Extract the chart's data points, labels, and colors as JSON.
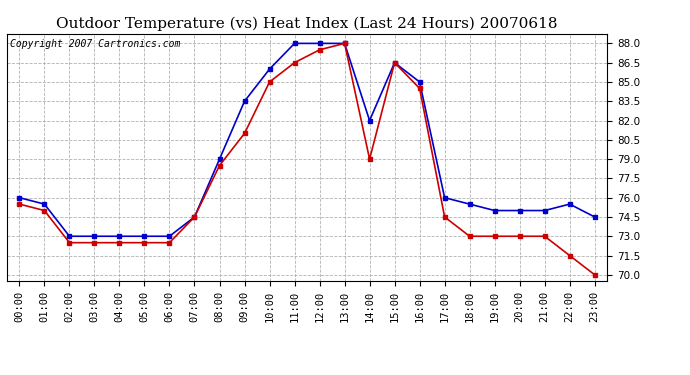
{
  "title": "Outdoor Temperature (vs) Heat Index (Last 24 Hours) 20070618",
  "copyright": "Copyright 2007 Cartronics.com",
  "hours": [
    "00:00",
    "01:00",
    "02:00",
    "03:00",
    "04:00",
    "05:00",
    "06:00",
    "07:00",
    "08:00",
    "09:00",
    "10:00",
    "11:00",
    "12:00",
    "13:00",
    "14:00",
    "15:00",
    "16:00",
    "17:00",
    "18:00",
    "19:00",
    "20:00",
    "21:00",
    "22:00",
    "23:00"
  ],
  "blue_data": [
    76.0,
    75.5,
    73.0,
    73.0,
    73.0,
    73.0,
    73.0,
    74.5,
    79.0,
    83.5,
    86.0,
    88.0,
    88.0,
    88.0,
    82.0,
    86.5,
    85.0,
    76.0,
    75.5,
    75.0,
    75.0,
    75.0,
    75.5,
    74.5
  ],
  "red_data": [
    75.5,
    75.0,
    72.5,
    72.5,
    72.5,
    72.5,
    72.5,
    74.5,
    78.5,
    81.0,
    85.0,
    86.5,
    87.5,
    88.0,
    79.0,
    86.5,
    84.5,
    74.5,
    73.0,
    73.0,
    73.0,
    73.0,
    71.5,
    70.0
  ],
  "blue_color": "#0000cc",
  "red_color": "#cc0000",
  "bg_color": "#ffffff",
  "plot_bg": "#ffffff",
  "grid_color": "#aaaaaa",
  "ylim_min": 69.5,
  "ylim_max": 88.75,
  "yticks": [
    70.0,
    71.5,
    73.0,
    74.5,
    76.0,
    77.5,
    79.0,
    80.5,
    82.0,
    83.5,
    85.0,
    86.5,
    88.0
  ],
  "title_fontsize": 11,
  "copyright_fontsize": 7,
  "tick_fontsize": 7.5
}
